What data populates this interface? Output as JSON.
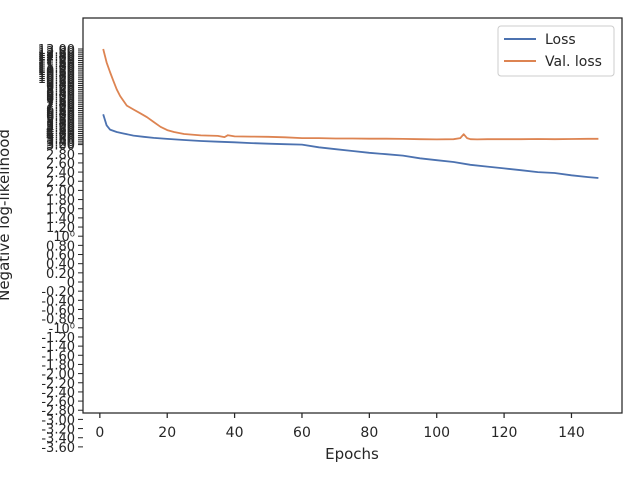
{
  "chart_data": {
    "type": "line",
    "xlabel": "Epochs",
    "ylabel": "Negative log-likelihood",
    "xlim": [
      -5,
      155
    ],
    "x_ticks": [
      0,
      20,
      40,
      60,
      80,
      100,
      120,
      140
    ],
    "y_tick_labels": [
      "-0.20",
      "-0.40",
      "-0.60",
      "-0.80",
      "-10⁰",
      "-1.20",
      "-1.40",
      "-1.60",
      "-1.80",
      "-2.00",
      "-2.20",
      "-2.40",
      "-2.60",
      "-2.80",
      "-3.00",
      "-3.20",
      "-3.40",
      "-3.60",
      "0",
      "0.20",
      "0.40",
      "0.60",
      "0.80",
      "10⁰",
      "1.20",
      "1.40",
      "1.60",
      "1.80",
      "2.00",
      "2.20",
      "2.40",
      "2.60",
      "2.80",
      "3.00",
      "3.20",
      "3.40",
      "3.60",
      "3.80",
      "4.00",
      "4.20",
      "4.40",
      "4.60",
      "4.80",
      "5.00",
      "5.20",
      "5.40",
      "5.60",
      "5.80",
      "6.00",
      "6.20",
      "6.40",
      "6.60",
      "6.80",
      "7.00",
      "7.20",
      "7.40",
      "7.60",
      "7.80",
      "8.00",
      "8.20",
      "8.40",
      "8.60",
      "8.80",
      "9.00",
      "9.20",
      "9.40",
      "9.60",
      "9.80",
      "10.00",
      "10.20",
      "10.40",
      "10.60",
      "10.80",
      "11.00",
      "11.20",
      "11.40",
      "11.60",
      "11.80",
      "12.00",
      "12.20",
      "12.40",
      "12.60",
      "12.80",
      "13.00"
    ],
    "grid": false,
    "legend_position": "top-right",
    "series": [
      {
        "name": "Loss",
        "color": "#4c72b0",
        "x": [
          1,
          2,
          3,
          5,
          7,
          10,
          13,
          16,
          20,
          25,
          30,
          35,
          40,
          45,
          50,
          55,
          60,
          65,
          70,
          75,
          80,
          85,
          90,
          95,
          100,
          105,
          110,
          115,
          120,
          125,
          130,
          135,
          140,
          145,
          148
        ],
        "y": [
          6.2,
          5.05,
          4.6,
          4.35,
          4.2,
          3.98,
          3.85,
          3.74,
          3.64,
          3.52,
          3.42,
          3.34,
          3.28,
          3.2,
          3.14,
          3.08,
          3.0,
          2.94,
          2.9,
          2.86,
          2.82,
          2.79,
          2.76,
          2.7,
          2.66,
          2.62,
          2.56,
          2.52,
          2.48,
          2.44,
          2.4,
          2.38,
          2.33,
          2.29,
          2.27
        ]
      },
      {
        "name": "Val. loss",
        "color": "#dd8452",
        "x": [
          1,
          2,
          3,
          4,
          5,
          6,
          7,
          8,
          10,
          12,
          14,
          16,
          18,
          20,
          22,
          25,
          30,
          35,
          37,
          38,
          40,
          45,
          50,
          55,
          60,
          65,
          70,
          75,
          80,
          85,
          90,
          95,
          100,
          105,
          107,
          108,
          109,
          110,
          112,
          115,
          120,
          125,
          130,
          135,
          140,
          145,
          148
        ],
        "y": [
          13.0,
          11.6,
          10.6,
          9.7,
          8.8,
          8.1,
          7.6,
          7.1,
          6.7,
          6.3,
          5.9,
          5.4,
          4.9,
          4.55,
          4.35,
          4.15,
          4.0,
          3.95,
          3.82,
          4.02,
          3.9,
          3.88,
          3.85,
          3.8,
          3.72,
          3.72,
          3.68,
          3.68,
          3.66,
          3.66,
          3.64,
          3.6,
          3.58,
          3.6,
          3.72,
          4.12,
          3.72,
          3.6,
          3.58,
          3.6,
          3.6,
          3.6,
          3.62,
          3.6,
          3.62,
          3.65,
          3.65
        ]
      }
    ]
  }
}
